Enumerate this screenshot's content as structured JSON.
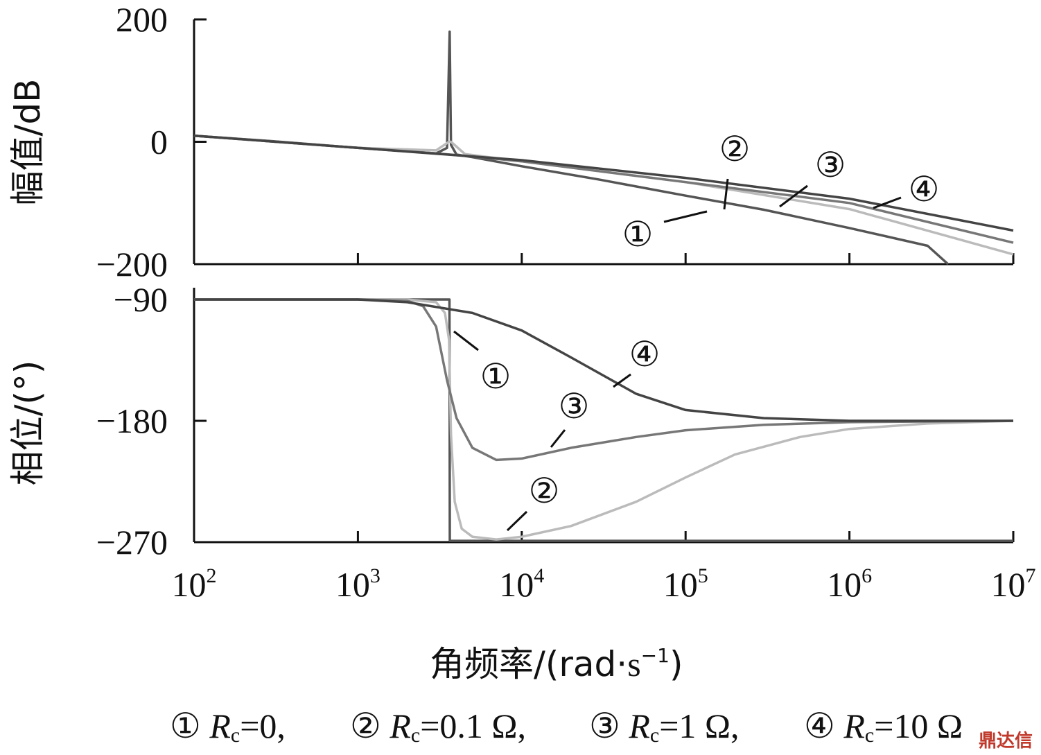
{
  "chart_data": [
    {
      "type": "line",
      "panel": "magnitude",
      "ylabel": "幅值/dB",
      "yticks": [
        200,
        0,
        -200
      ],
      "ylim": [
        -200,
        200
      ],
      "xscale": "log",
      "xlim": [
        100,
        10000000
      ],
      "grid": false,
      "series": [
        {
          "id": "1",
          "color": "#555555",
          "x": [
            100,
            300,
            1000,
            3000,
            3500,
            3630,
            3700,
            4000,
            5000,
            10000,
            30000,
            100000,
            300000,
            1000000,
            3000000,
            4000000
          ],
          "y": [
            10,
            1,
            -10,
            -19,
            -10,
            180,
            -5,
            -21,
            -25,
            -40,
            -62,
            -88,
            -111,
            -141,
            -170,
            -202
          ]
        },
        {
          "id": "2",
          "color": "#bbbbbb",
          "x": [
            100,
            1000,
            3000,
            3600,
            3700,
            4500,
            10000,
            100000,
            1000000,
            10000000
          ],
          "y": [
            10,
            -10,
            -14,
            0,
            0,
            -20,
            -32,
            -66,
            -110,
            -184
          ]
        },
        {
          "id": "3",
          "color": "#777777",
          "x": [
            100,
            1000,
            3000,
            5000,
            10000,
            100000,
            1000000,
            10000000
          ],
          "y": [
            10,
            -10,
            -19,
            -24,
            -32,
            -66,
            -100,
            -165
          ]
        },
        {
          "id": "4",
          "color": "#444444",
          "x": [
            100,
            1000,
            10000,
            100000,
            1000000,
            10000000
          ],
          "y": [
            10,
            -10,
            -30,
            -59,
            -93,
            -145
          ]
        }
      ]
    },
    {
      "type": "line",
      "panel": "phase",
      "ylabel": "相位/(°)",
      "yticks": [
        -90,
        -180,
        -270
      ],
      "ylim": [
        -270,
        -90
      ],
      "xscale": "log",
      "xlim": [
        100,
        10000000
      ],
      "xlabel": "角频率/(rad·s⁻¹)",
      "grid": false,
      "series": [
        {
          "id": "1",
          "color": "#555555",
          "x": [
            100,
            3620,
            3630,
            3640,
            10000000
          ],
          "y": [
            -90,
            -90,
            -180,
            -269,
            -269
          ]
        },
        {
          "id": "2",
          "color": "#bbbbbb",
          "x": [
            100,
            2000,
            3000,
            3400,
            3600,
            3700,
            3900,
            4300,
            5000,
            7000,
            10000,
            20000,
            50000,
            100000,
            200000,
            500000,
            1000000,
            3000000,
            10000000
          ],
          "y": [
            -90,
            -90,
            -92,
            -100,
            -120,
            -190,
            -240,
            -260,
            -266,
            -268,
            -266,
            -258,
            -240,
            -222,
            -205,
            -192,
            -186,
            -182,
            -180
          ]
        },
        {
          "id": "3",
          "color": "#777777",
          "x": [
            100,
            1000,
            2000,
            2500,
            3000,
            3500,
            4000,
            5000,
            7000,
            10000,
            20000,
            50000,
            100000,
            300000,
            1000000,
            10000000
          ],
          "y": [
            -90,
            -90,
            -91,
            -95,
            -110,
            -150,
            -178,
            -200,
            -209,
            -208,
            -200,
            -192,
            -187,
            -183,
            -181,
            -180
          ]
        },
        {
          "id": "4",
          "color": "#444444",
          "x": [
            100,
            1000,
            2000,
            5000,
            10000,
            20000,
            50000,
            100000,
            300000,
            1000000,
            10000000
          ],
          "y": [
            -90,
            -90,
            -92,
            -100,
            -113,
            -133,
            -160,
            -172,
            -178,
            -180,
            -180
          ]
        }
      ]
    }
  ],
  "x_tick_labels": [
    {
      "base": "10",
      "exp": "2"
    },
    {
      "base": "10",
      "exp": "3"
    },
    {
      "base": "10",
      "exp": "4"
    },
    {
      "base": "10",
      "exp": "5"
    },
    {
      "base": "10",
      "exp": "6"
    },
    {
      "base": "10",
      "exp": "7"
    }
  ],
  "axis_titles": {
    "magnitude_y": "幅值/dB",
    "phase_y": "相位/(°)",
    "x_main": "角频率/(rad",
    "x_dot": "·",
    "x_s": "s",
    "x_exp": "−1",
    "x_close": ")"
  },
  "callouts": {
    "c1": "①",
    "c2": "②",
    "c3": "③",
    "c4": "④"
  },
  "legend": {
    "item1": {
      "marker": "①",
      "sym": "R",
      "sub": "c",
      "value": "=0,"
    },
    "item2": {
      "marker": "②",
      "sym": "R",
      "sub": "c",
      "value": "=0.1 Ω,"
    },
    "item3": {
      "marker": "③",
      "sym": "R",
      "sub": "c",
      "value": "=1 Ω,"
    },
    "item4": {
      "marker": "④",
      "sym": "R",
      "sub": "c",
      "value": "=10 Ω"
    }
  },
  "watermark": "鼎达信"
}
